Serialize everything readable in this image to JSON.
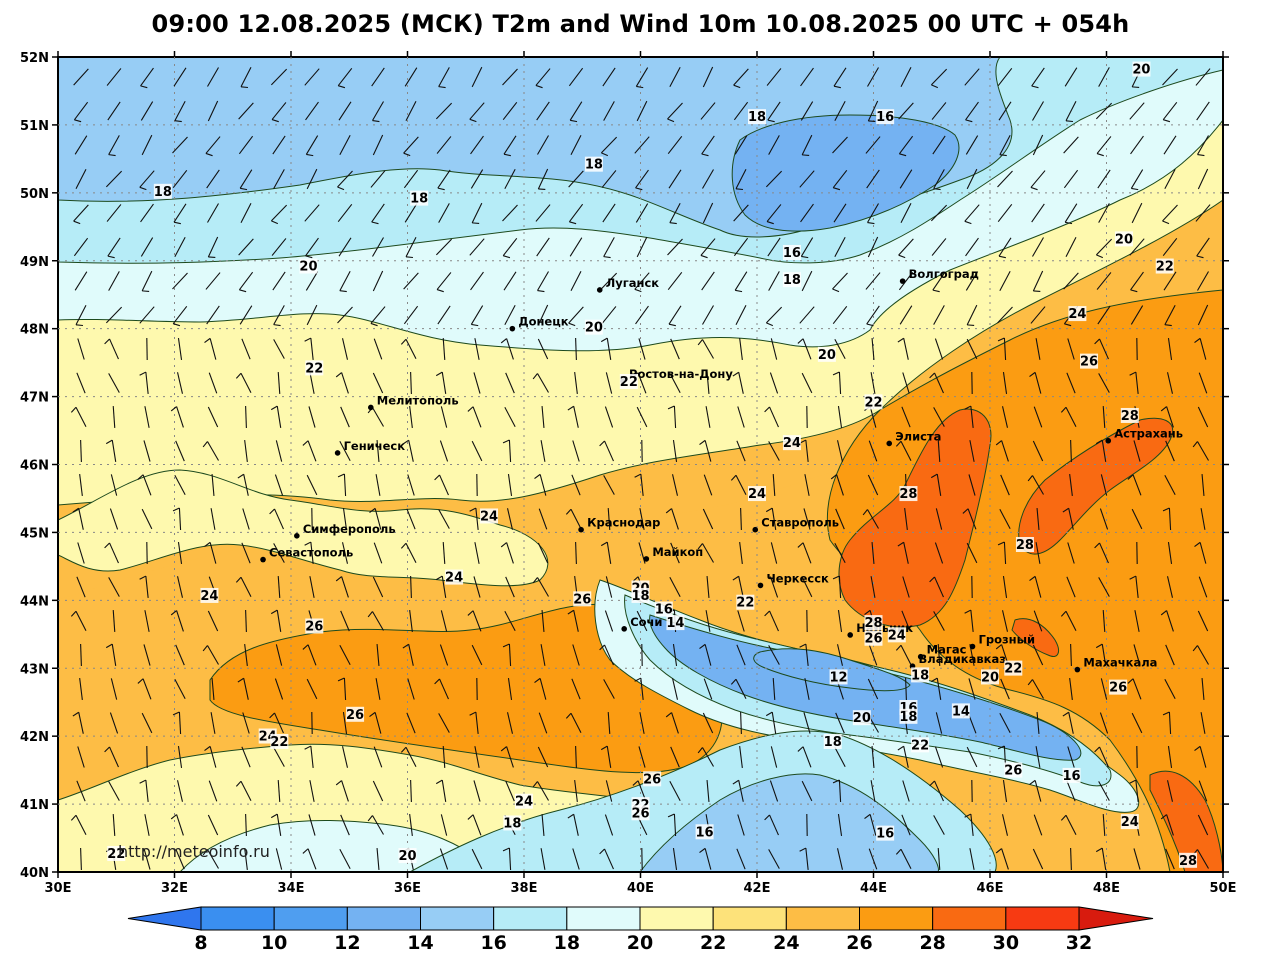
{
  "title": "09:00 12.08.2025 (МСК) T2m and Wind 10m 10.08.2025 00 UTC + 054h",
  "map": {
    "lon_range": [
      30,
      50
    ],
    "lat_range": [
      40,
      52
    ],
    "lon_ticks": [
      "30E",
      "32E",
      "34E",
      "36E",
      "38E",
      "40E",
      "42E",
      "44E",
      "46E",
      "48E",
      "50E"
    ],
    "lat_ticks": [
      "40N",
      "41N",
      "42N",
      "43N",
      "44N",
      "45N",
      "46N",
      "47N",
      "48N",
      "49N",
      "50N",
      "51N",
      "52N"
    ],
    "grid": true,
    "watermark": "http://meteoinfo.ru"
  },
  "cities": [
    {
      "name": "Волгоград",
      "lon": 44.5,
      "lat": 48.7
    },
    {
      "name": "Луганск",
      "lon": 39.3,
      "lat": 48.57
    },
    {
      "name": "Донецк",
      "lon": 37.8,
      "lat": 48.0
    },
    {
      "name": "Ростов-на-Дону",
      "lon": 39.7,
      "lat": 47.23
    },
    {
      "name": "Мелитополь",
      "lon": 35.37,
      "lat": 46.84
    },
    {
      "name": "Элиста",
      "lon": 44.27,
      "lat": 46.31
    },
    {
      "name": "Астрахань",
      "lon": 48.03,
      "lat": 46.35
    },
    {
      "name": "Геническ",
      "lon": 34.8,
      "lat": 46.17
    },
    {
      "name": "Краснодар",
      "lon": 38.98,
      "lat": 45.04
    },
    {
      "name": "Ставрополь",
      "lon": 41.97,
      "lat": 45.04
    },
    {
      "name": "Симферополь",
      "lon": 34.1,
      "lat": 44.95
    },
    {
      "name": "Майкоп",
      "lon": 40.1,
      "lat": 44.61
    },
    {
      "name": "Севастополь",
      "lon": 33.52,
      "lat": 44.6
    },
    {
      "name": "Черкесск",
      "lon": 42.06,
      "lat": 44.22
    },
    {
      "name": "Сочи",
      "lon": 39.72,
      "lat": 43.58
    },
    {
      "name": "Нальчик",
      "lon": 43.6,
      "lat": 43.49
    },
    {
      "name": "Грозный",
      "lon": 45.7,
      "lat": 43.32
    },
    {
      "name": "Магас",
      "lon": 44.81,
      "lat": 43.17
    },
    {
      "name": "Махачкала",
      "lon": 47.5,
      "lat": 42.98
    },
    {
      "name": "Владикавказ",
      "lon": 44.67,
      "lat": 43.03
    }
  ],
  "isolines": [
    {
      "text": "20",
      "lon": 48.6,
      "lat": 51.8
    },
    {
      "text": "18",
      "lon": 42.0,
      "lat": 51.1
    },
    {
      "text": "16",
      "lon": 44.2,
      "lat": 51.1
    },
    {
      "text": "18",
      "lon": 39.2,
      "lat": 50.4
    },
    {
      "text": "18",
      "lon": 31.8,
      "lat": 50.0
    },
    {
      "text": "18",
      "lon": 36.2,
      "lat": 49.9
    },
    {
      "text": "20",
      "lon": 48.3,
      "lat": 49.3
    },
    {
      "text": "16",
      "lon": 42.6,
      "lat": 49.1
    },
    {
      "text": "20",
      "lon": 34.3,
      "lat": 48.9
    },
    {
      "text": "22",
      "lon": 49.0,
      "lat": 48.9
    },
    {
      "text": "18",
      "lon": 42.6,
      "lat": 48.7
    },
    {
      "text": "20",
      "lon": 39.2,
      "lat": 48.0
    },
    {
      "text": "24",
      "lon": 47.5,
      "lat": 48.2
    },
    {
      "text": "20",
      "lon": 43.2,
      "lat": 47.6
    },
    {
      "text": "22",
      "lon": 34.4,
      "lat": 47.4
    },
    {
      "text": "26",
      "lon": 47.7,
      "lat": 47.5
    },
    {
      "text": "22",
      "lon": 39.8,
      "lat": 47.2
    },
    {
      "text": "22",
      "lon": 44.0,
      "lat": 46.9
    },
    {
      "text": "28",
      "lon": 48.4,
      "lat": 46.7
    },
    {
      "text": "24",
      "lon": 42.6,
      "lat": 46.3
    },
    {
      "text": "28",
      "lon": 44.6,
      "lat": 45.55
    },
    {
      "text": "24",
      "lon": 42.0,
      "lat": 45.55
    },
    {
      "text": "24",
      "lon": 37.4,
      "lat": 45.22
    },
    {
      "text": "28",
      "lon": 46.6,
      "lat": 44.8
    },
    {
      "text": "20",
      "lon": 40.0,
      "lat": 44.16
    },
    {
      "text": "18",
      "lon": 40.0,
      "lat": 44.05
    },
    {
      "text": "24",
      "lon": 36.8,
      "lat": 44.32
    },
    {
      "text": "22",
      "lon": 41.8,
      "lat": 43.95
    },
    {
      "text": "26",
      "lon": 39.0,
      "lat": 44.0
    },
    {
      "text": "16",
      "lon": 40.4,
      "lat": 43.85
    },
    {
      "text": "24",
      "lon": 32.6,
      "lat": 44.05
    },
    {
      "text": "14",
      "lon": 40.6,
      "lat": 43.65
    },
    {
      "text": "28",
      "lon": 44.0,
      "lat": 43.65
    },
    {
      "text": "26",
      "lon": 34.4,
      "lat": 43.6
    },
    {
      "text": "26",
      "lon": 44.0,
      "lat": 43.42
    },
    {
      "text": "24",
      "lon": 44.4,
      "lat": 43.47
    },
    {
      "text": "22",
      "lon": 46.4,
      "lat": 42.98
    },
    {
      "text": "20",
      "lon": 46.0,
      "lat": 42.85
    },
    {
      "text": "18",
      "lon": 44.8,
      "lat": 42.88
    },
    {
      "text": "12",
      "lon": 43.4,
      "lat": 42.85
    },
    {
      "text": "26",
      "lon": 48.2,
      "lat": 42.7
    },
    {
      "text": "16",
      "lon": 44.6,
      "lat": 42.4
    },
    {
      "text": "14",
      "lon": 45.5,
      "lat": 42.35
    },
    {
      "text": "26",
      "lon": 35.1,
      "lat": 42.3
    },
    {
      "text": "20",
      "lon": 43.8,
      "lat": 42.25
    },
    {
      "text": "18",
      "lon": 44.6,
      "lat": 42.27
    },
    {
      "text": "24",
      "lon": 33.6,
      "lat": 41.98
    },
    {
      "text": "22",
      "lon": 33.8,
      "lat": 41.9
    },
    {
      "text": "18",
      "lon": 43.3,
      "lat": 41.9
    },
    {
      "text": "22",
      "lon": 44.8,
      "lat": 41.85
    },
    {
      "text": "26",
      "lon": 46.4,
      "lat": 41.48
    },
    {
      "text": "16",
      "lon": 47.4,
      "lat": 41.4
    },
    {
      "text": "26",
      "lon": 40.2,
      "lat": 41.35
    },
    {
      "text": "24",
      "lon": 38.0,
      "lat": 41.02
    },
    {
      "text": "22",
      "lon": 40.0,
      "lat": 40.97
    },
    {
      "text": "26",
      "lon": 40.0,
      "lat": 40.85
    },
    {
      "text": "18",
      "lon": 37.8,
      "lat": 40.7
    },
    {
      "text": "16",
      "lon": 41.1,
      "lat": 40.57
    },
    {
      "text": "16",
      "lon": 44.2,
      "lat": 40.55
    },
    {
      "text": "24",
      "lon": 48.4,
      "lat": 40.72
    },
    {
      "text": "22",
      "lon": 31.0,
      "lat": 40.25
    },
    {
      "text": "20",
      "lon": 36.0,
      "lat": 40.22
    },
    {
      "text": "28",
      "lon": 49.4,
      "lat": 40.15
    }
  ],
  "colorbar": {
    "labels": [
      "8",
      "10",
      "12",
      "14",
      "16",
      "18",
      "20",
      "22",
      "24",
      "26",
      "28",
      "30",
      "32"
    ],
    "colors": [
      "#3a8ff0",
      "#4f9ef0",
      "#74b2f2",
      "#97cdf5",
      "#b6ecf7",
      "#e0fbfb",
      "#fef9ae",
      "#fde27a",
      "#fdbd45",
      "#fb9c12",
      "#f96a12",
      "#f73a12"
    ],
    "under_color": "#2f76ee",
    "over_color": "#d81b0e"
  },
  "palette": {
    "t16": "#97cdf5",
    "t18": "#b6ecf7",
    "t20": "#e0fbfb",
    "t22": "#fef9ae",
    "t24": "#fde27a",
    "t26": "#fdbd45",
    "t28": "#fb9c12",
    "t30": "#f96a12",
    "t12": "#74b2f2",
    "t14": "#74b2f2"
  }
}
